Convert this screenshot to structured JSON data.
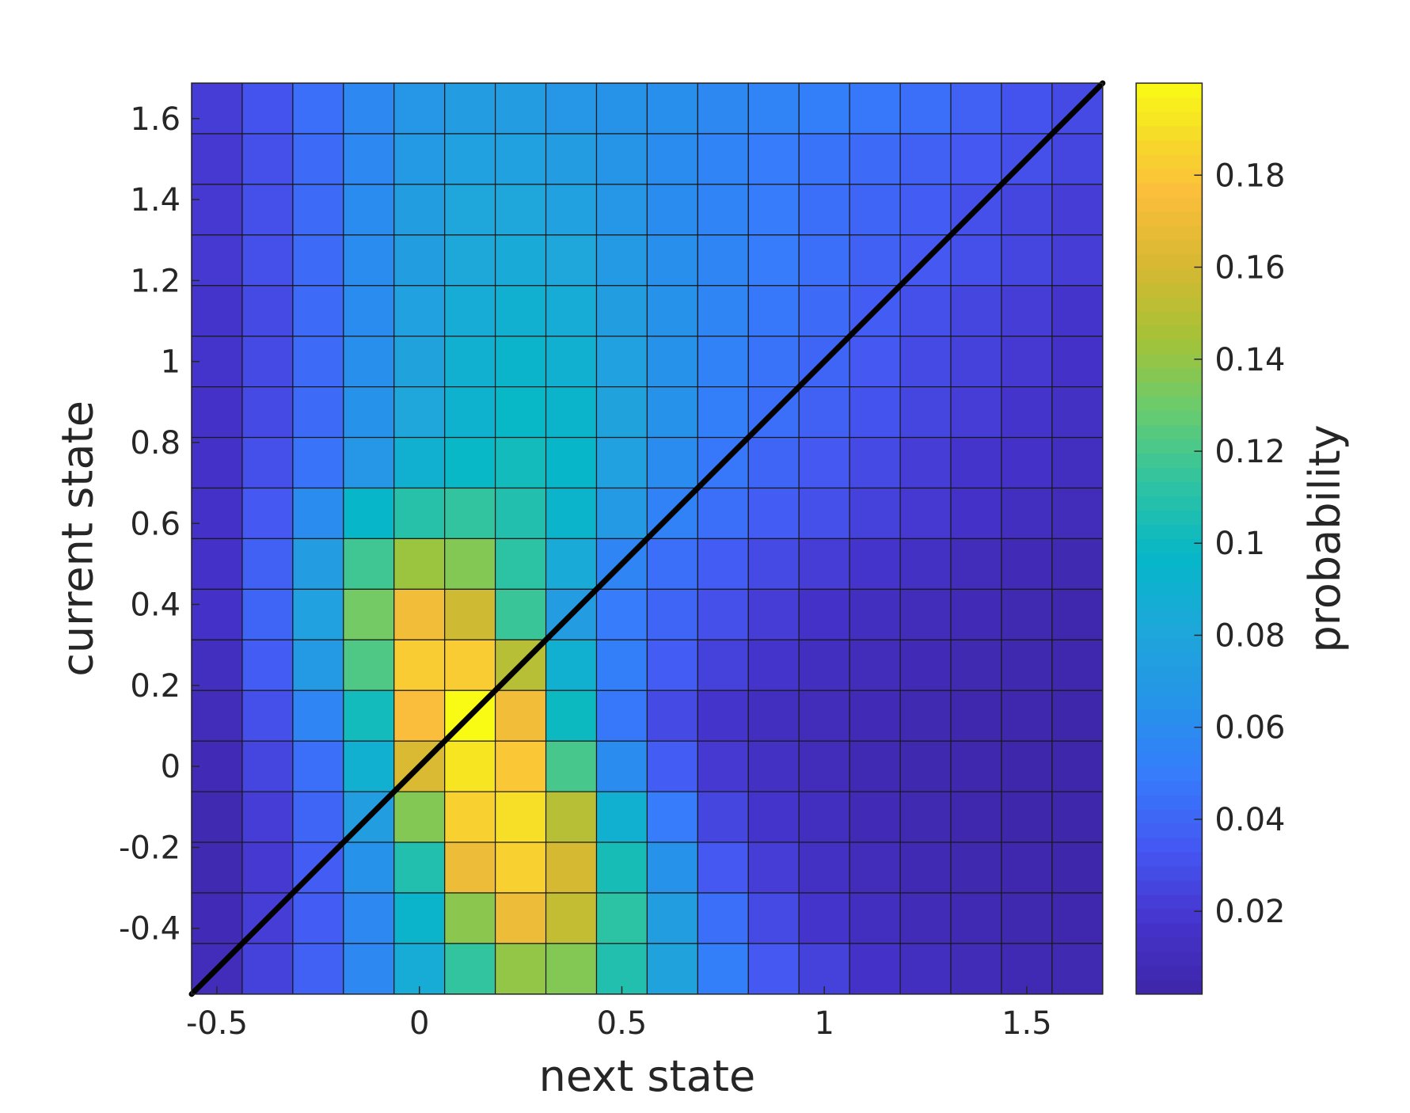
{
  "chart_data": {
    "type": "heatmap",
    "title": "",
    "xlabel": "next state",
    "ylabel": "current state",
    "colorbar_label": "probability",
    "colormap": "parula",
    "x_centers": [
      -0.5,
      -0.375,
      -0.25,
      -0.125,
      0.0,
      0.125,
      0.25,
      0.375,
      0.5,
      0.625,
      0.75,
      0.875,
      1.0,
      1.125,
      1.25,
      1.375,
      1.5,
      1.625
    ],
    "y_centers": [
      1.625,
      1.5,
      1.375,
      1.25,
      1.125,
      1.0,
      0.875,
      0.75,
      0.625,
      0.5,
      0.375,
      0.25,
      0.125,
      0.0,
      -0.125,
      -0.25,
      -0.375,
      -0.5
    ],
    "xlim": [
      -0.5625,
      1.6875
    ],
    "ylim": [
      -0.5625,
      1.6875
    ],
    "clim": [
      0.002,
      0.2
    ],
    "xticks": [
      -0.5,
      0,
      0.5,
      1,
      1.5
    ],
    "xtick_labels": [
      "-0.5",
      "0",
      "0.5",
      "1",
      "1.5"
    ],
    "yticks": [
      1.6,
      1.4,
      1.2,
      1,
      0.8,
      0.6,
      0.4,
      0.2,
      0,
      -0.2,
      -0.4
    ],
    "ytick_labels": [
      "1.6",
      "1.4",
      "1.2",
      "1",
      "0.8",
      "0.6",
      "0.4",
      "0.2",
      "0",
      "-0.2",
      "-0.4"
    ],
    "colorbar_ticks": [
      0.18,
      0.16,
      0.14,
      0.12,
      0.1,
      0.08,
      0.06,
      0.04,
      0.02
    ],
    "colorbar_tick_labels": [
      "0.18",
      "0.16",
      "0.14",
      "0.12",
      "0.1",
      "0.08",
      "0.06",
      "0.04",
      "0.02"
    ],
    "diagonal_line": {
      "from": [
        -0.5625,
        -0.5625
      ],
      "to": [
        1.6875,
        1.6875
      ],
      "color": "#000000"
    },
    "values": [
      [
        0.022,
        0.032,
        0.044,
        0.058,
        0.068,
        0.072,
        0.072,
        0.068,
        0.065,
        0.062,
        0.058,
        0.055,
        0.052,
        0.048,
        0.044,
        0.038,
        0.032,
        0.028
      ],
      [
        0.02,
        0.03,
        0.042,
        0.058,
        0.07,
        0.076,
        0.076,
        0.072,
        0.066,
        0.06,
        0.055,
        0.05,
        0.046,
        0.042,
        0.038,
        0.034,
        0.03,
        0.026
      ],
      [
        0.02,
        0.03,
        0.042,
        0.06,
        0.074,
        0.08,
        0.08,
        0.076,
        0.068,
        0.06,
        0.055,
        0.05,
        0.044,
        0.04,
        0.036,
        0.03,
        0.026,
        0.022
      ],
      [
        0.02,
        0.03,
        0.042,
        0.06,
        0.074,
        0.082,
        0.084,
        0.08,
        0.07,
        0.062,
        0.056,
        0.05,
        0.044,
        0.038,
        0.034,
        0.03,
        0.026,
        0.022
      ],
      [
        0.018,
        0.028,
        0.042,
        0.06,
        0.076,
        0.086,
        0.09,
        0.086,
        0.074,
        0.064,
        0.056,
        0.048,
        0.042,
        0.036,
        0.03,
        0.026,
        0.022,
        0.018
      ],
      [
        0.018,
        0.028,
        0.042,
        0.062,
        0.078,
        0.09,
        0.094,
        0.09,
        0.076,
        0.064,
        0.054,
        0.046,
        0.04,
        0.034,
        0.028,
        0.024,
        0.02,
        0.016
      ],
      [
        0.016,
        0.028,
        0.042,
        0.064,
        0.08,
        0.092,
        0.098,
        0.094,
        0.078,
        0.064,
        0.052,
        0.044,
        0.038,
        0.032,
        0.026,
        0.022,
        0.018,
        0.014
      ],
      [
        0.016,
        0.03,
        0.046,
        0.068,
        0.09,
        0.098,
        0.102,
        0.096,
        0.076,
        0.06,
        0.048,
        0.04,
        0.034,
        0.028,
        0.022,
        0.018,
        0.016,
        0.012
      ],
      [
        0.016,
        0.034,
        0.06,
        0.096,
        0.11,
        0.114,
        0.108,
        0.094,
        0.07,
        0.054,
        0.044,
        0.036,
        0.03,
        0.024,
        0.02,
        0.016,
        0.012,
        0.01
      ],
      [
        0.016,
        0.038,
        0.072,
        0.118,
        0.142,
        0.136,
        0.112,
        0.084,
        0.056,
        0.044,
        0.036,
        0.028,
        0.022,
        0.018,
        0.014,
        0.01,
        0.008,
        0.006
      ],
      [
        0.016,
        0.04,
        0.076,
        0.132,
        0.172,
        0.158,
        0.116,
        0.072,
        0.05,
        0.04,
        0.03,
        0.022,
        0.016,
        0.012,
        0.01,
        0.008,
        0.006,
        0.004
      ],
      [
        0.012,
        0.036,
        0.07,
        0.122,
        0.182,
        0.182,
        0.15,
        0.09,
        0.052,
        0.036,
        0.024,
        0.018,
        0.012,
        0.01,
        0.008,
        0.006,
        0.005,
        0.004
      ],
      [
        0.01,
        0.03,
        0.056,
        0.102,
        0.176,
        0.2,
        0.172,
        0.1,
        0.048,
        0.028,
        0.018,
        0.012,
        0.01,
        0.008,
        0.006,
        0.004,
        0.004,
        0.003
      ],
      [
        0.008,
        0.026,
        0.044,
        0.09,
        0.162,
        0.192,
        0.18,
        0.12,
        0.06,
        0.036,
        0.02,
        0.014,
        0.01,
        0.007,
        0.005,
        0.004,
        0.003,
        0.003
      ],
      [
        0.006,
        0.022,
        0.04,
        0.074,
        0.136,
        0.184,
        0.19,
        0.15,
        0.09,
        0.05,
        0.026,
        0.018,
        0.012,
        0.008,
        0.006,
        0.004,
        0.003,
        0.003
      ],
      [
        0.006,
        0.02,
        0.036,
        0.064,
        0.108,
        0.17,
        0.184,
        0.16,
        0.104,
        0.064,
        0.034,
        0.022,
        0.014,
        0.01,
        0.007,
        0.005,
        0.004,
        0.003
      ],
      [
        0.008,
        0.022,
        0.036,
        0.058,
        0.094,
        0.138,
        0.17,
        0.154,
        0.112,
        0.074,
        0.044,
        0.028,
        0.018,
        0.012,
        0.009,
        0.007,
        0.005,
        0.004
      ],
      [
        0.01,
        0.024,
        0.038,
        0.058,
        0.086,
        0.114,
        0.14,
        0.136,
        0.108,
        0.078,
        0.052,
        0.034,
        0.024,
        0.016,
        0.012,
        0.009,
        0.007,
        0.006
      ]
    ]
  }
}
